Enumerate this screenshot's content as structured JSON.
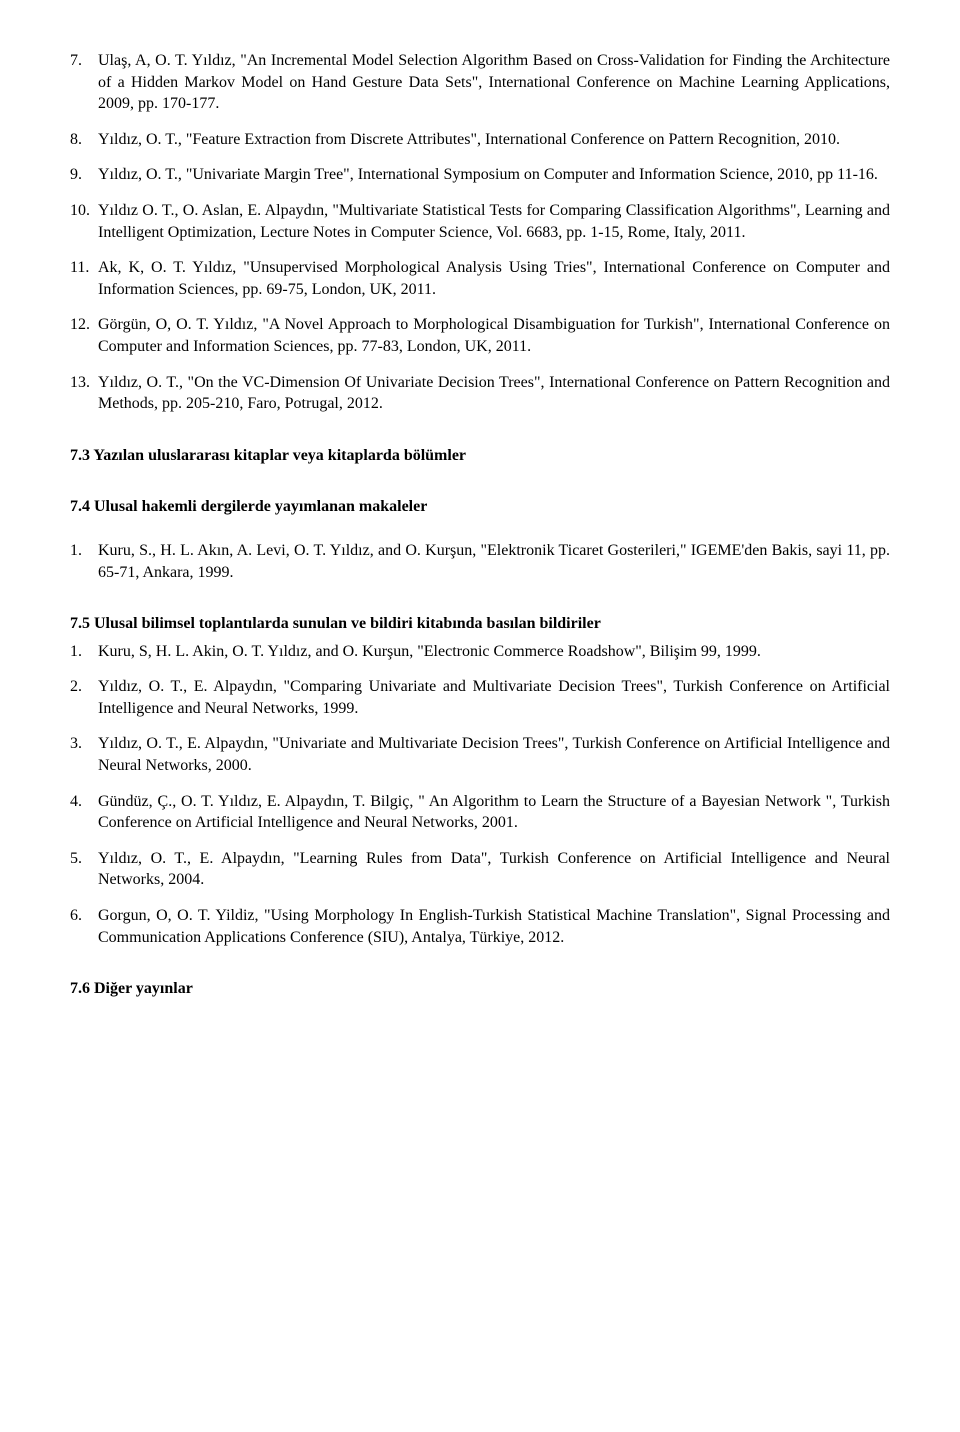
{
  "list_a": [
    {
      "n": "7.",
      "t": "Ulaş, A, O. T. Yıldız, \"An Incremental Model Selection Algorithm Based on Cross-Validation for Finding the Architecture of a Hidden Markov Model on Hand Gesture Data Sets\", International Conference on Machine Learning Applications, 2009, pp. 170-177."
    },
    {
      "n": "8.",
      "t": "Yıldız, O. T., \"Feature Extraction from Discrete Attributes\", International Conference on Pattern Recognition, 2010."
    },
    {
      "n": "9.",
      "t": "Yıldız, O. T., \"Univariate Margin Tree\", International Symposium on Computer and Information Science, 2010, pp 11-16."
    },
    {
      "n": "10.",
      "t": "Yıldız O. T., O. Aslan, E. Alpaydın, \"Multivariate Statistical Tests for Comparing Classification Algorithms\", Learning and Intelligent Optimization, Lecture Notes in Computer Science, Vol. 6683, pp. 1-15, Rome, Italy, 2011."
    },
    {
      "n": "11.",
      "t": "Ak, K, O. T. Yıldız, \"Unsupervised Morphological Analysis Using Tries\", International Conference on Computer and Information Sciences, pp. 69-75, London, UK, 2011."
    },
    {
      "n": "12.",
      "t": "Görgün, O, O. T. Yıldız, \"A Novel Approach to Morphological Disambiguation for Turkish\", International Conference on Computer and Information Sciences, pp. 77-83, London, UK, 2011."
    },
    {
      "n": "13.",
      "t": "Yıldız, O. T., \"On the VC-Dimension Of Univariate Decision Trees\", International Conference on Pattern Recognition and Methods, pp. 205-210, Faro, Potrugal, 2012."
    }
  ],
  "sec73": "7.3 Yazılan uluslararası kitaplar veya kitaplarda bölümler",
  "sec74": "7.4 Ulusal hakemli dergilerde yayımlanan makaleler",
  "list_b": [
    {
      "n": "1.",
      "t": "Kuru, S., H. L. Akın, A. Levi, O. T. Yıldız, and O. Kurşun, \"Elektronik Ticaret Gosterileri,\" IGEME'den Bakis, sayi 11, pp. 65-71, Ankara, 1999."
    }
  ],
  "sec75": "7.5 Ulusal bilimsel toplantılarda sunulan ve bildiri kitabında basılan bildiriler",
  "list_c": [
    {
      "n": "1.",
      "t": "Kuru, S, H. L. Akin, O. T. Yıldız, and O. Kurşun, \"Electronic Commerce Roadshow\", Bilişim 99, 1999."
    },
    {
      "n": "2.",
      "t": "Yıldız, O. T., E. Alpaydın, \"Comparing Univariate and Multivariate Decision Trees\", Turkish Conference on Artificial Intelligence and Neural Networks, 1999."
    },
    {
      "n": "3.",
      "t": "Yıldız, O. T., E. Alpaydın, \"Univariate and Multivariate Decision Trees\", Turkish Conference on Artificial Intelligence and Neural Networks, 2000."
    },
    {
      "n": "4.",
      "t": "Gündüz, Ç., O. T. Yıldız, E. Alpaydın, T. Bilgiç, \" An Algorithm to Learn the Structure of a Bayesian Network \", Turkish Conference on Artificial Intelligence and Neural Networks, 2001."
    },
    {
      "n": "5.",
      "t": "Yıldız, O. T., E. Alpaydın, \"Learning Rules from Data\", Turkish Conference on Artificial Intelligence and Neural Networks, 2004."
    },
    {
      "n": "6.",
      "t": "Gorgun, O, O. T. Yildiz, \"Using Morphology In English-Turkish Statistical Machine Translation\", Signal Processing and Communication Applications Conference (SIU), Antalya, Türkiye, 2012."
    }
  ],
  "sec76": "7.6 Diğer yayınlar"
}
